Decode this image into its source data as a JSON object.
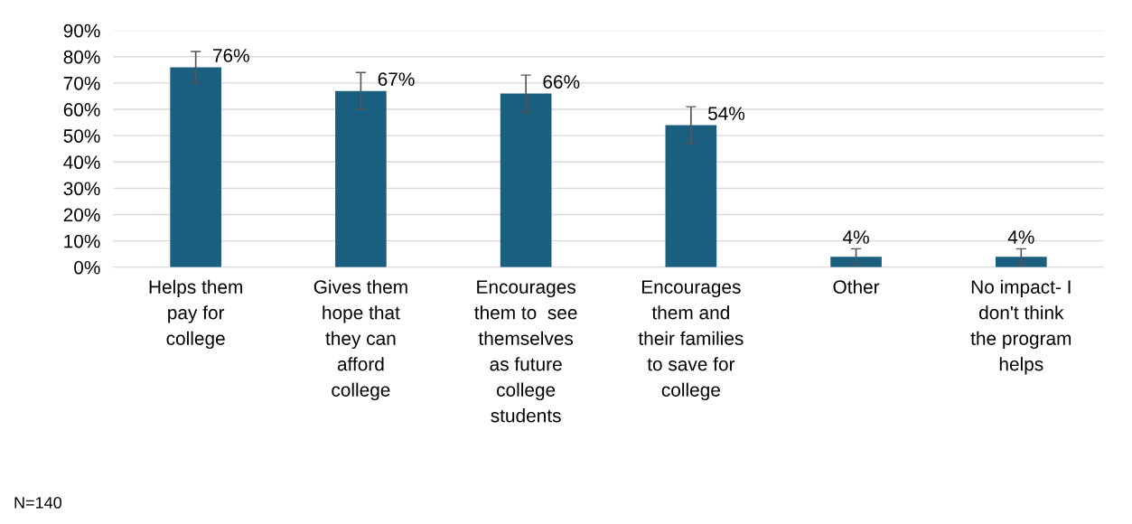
{
  "chart_data": {
    "type": "bar",
    "categories": [
      "Helps them\npay for\ncollege",
      "Gives them\nhope that\nthey can\nafford\ncollege",
      "Encourages\nthem to  see\nthemselves\nas future\ncollege\nstudents",
      "Encourages\nthem and\ntheir families\nto save for\ncollege",
      "Other",
      "No impact- I\ndon't think\nthe program\nhelps"
    ],
    "values": [
      76,
      67,
      66,
      54,
      4,
      4
    ],
    "errors": [
      6,
      7,
      7,
      7,
      3,
      3
    ],
    "value_labels": [
      "76%",
      "67%",
      "66%",
      "54%",
      "4%",
      "4%"
    ],
    "color": "#1a5e80",
    "ylim": [
      0,
      90
    ],
    "yticks": [
      {
        "value": 0,
        "label": "0%"
      },
      {
        "value": 10,
        "label": "10%"
      },
      {
        "value": 20,
        "label": "20%"
      },
      {
        "value": 30,
        "label": "30%"
      },
      {
        "value": 40,
        "label": "40%"
      },
      {
        "value": 50,
        "label": "50%"
      },
      {
        "value": 60,
        "label": "60%"
      },
      {
        "value": 70,
        "label": "70%"
      },
      {
        "value": 80,
        "label": "80%"
      },
      {
        "value": 90,
        "label": "90%"
      }
    ],
    "grid": "y",
    "annotations": [
      "N=140"
    ]
  }
}
